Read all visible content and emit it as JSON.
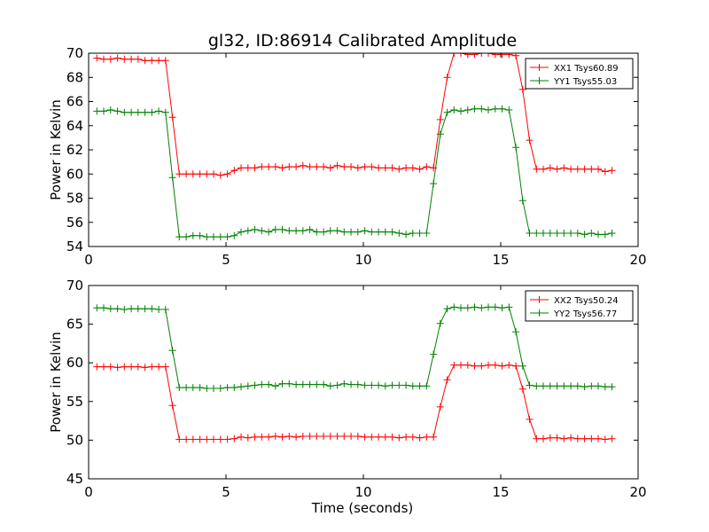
{
  "figure_title": "gl32, ID:86914 Calibrated Amplitude",
  "xlabel": "Time (seconds)",
  "chart_data": [
    {
      "type": "line",
      "ylabel": "Power in Kelvin",
      "xlim": [
        0,
        20
      ],
      "ylim": [
        54,
        70
      ],
      "xticks": [
        0,
        5,
        10,
        15,
        20
      ],
      "yticks": [
        54,
        56,
        58,
        60,
        62,
        64,
        66,
        68,
        70
      ],
      "legend": "top-right",
      "series": [
        {
          "name": "XX1 Tsys60.89",
          "color": "#ff0000",
          "x": [
            0.3,
            0.55,
            0.8,
            1.05,
            1.3,
            1.55,
            1.8,
            2.05,
            2.3,
            2.55,
            2.8,
            3.05,
            3.3,
            3.55,
            3.8,
            4.05,
            4.3,
            4.55,
            4.8,
            5.05,
            5.3,
            5.55,
            5.8,
            6.05,
            6.3,
            6.55,
            6.8,
            7.05,
            7.3,
            7.55,
            7.8,
            8.05,
            8.3,
            8.55,
            8.8,
            9.05,
            9.3,
            9.55,
            9.8,
            10.05,
            10.3,
            10.55,
            10.8,
            11.05,
            11.3,
            11.55,
            11.8,
            12.05,
            12.3,
            12.55,
            12.8,
            13.05,
            13.3,
            13.55,
            13.8,
            14.05,
            14.3,
            14.55,
            14.8,
            15.05,
            15.3,
            15.55,
            15.8,
            16.05,
            16.3,
            16.55,
            16.8,
            17.05,
            17.3,
            17.55,
            17.8,
            18.05,
            18.3,
            18.55,
            18.8,
            19.05
          ],
          "y": [
            69.6,
            69.5,
            69.5,
            69.6,
            69.5,
            69.5,
            69.5,
            69.4,
            69.4,
            69.4,
            69.4,
            64.7,
            60.0,
            60.0,
            60.0,
            60.0,
            60.0,
            60.0,
            59.9,
            60.0,
            60.3,
            60.5,
            60.5,
            60.5,
            60.6,
            60.6,
            60.6,
            60.5,
            60.6,
            60.6,
            60.7,
            60.6,
            60.6,
            60.6,
            60.5,
            60.7,
            60.6,
            60.6,
            60.5,
            60.6,
            60.6,
            60.5,
            60.5,
            60.5,
            60.4,
            60.5,
            60.5,
            60.4,
            60.6,
            60.5,
            64.5,
            68.0,
            70.0,
            70.0,
            69.9,
            69.9,
            70.0,
            70.0,
            69.9,
            69.9,
            69.9,
            69.8,
            67.0,
            62.8,
            60.4,
            60.4,
            60.5,
            60.4,
            60.5,
            60.4,
            60.4,
            60.4,
            60.4,
            60.4,
            60.2,
            60.3
          ]
        },
        {
          "name": "YY1 Tsys55.03",
          "color": "#008000",
          "x": [
            0.3,
            0.55,
            0.8,
            1.05,
            1.3,
            1.55,
            1.8,
            2.05,
            2.3,
            2.55,
            2.8,
            3.05,
            3.3,
            3.55,
            3.8,
            4.05,
            4.3,
            4.55,
            4.8,
            5.05,
            5.3,
            5.55,
            5.8,
            6.05,
            6.3,
            6.55,
            6.8,
            7.05,
            7.3,
            7.55,
            7.8,
            8.05,
            8.3,
            8.55,
            8.8,
            9.05,
            9.3,
            9.55,
            9.8,
            10.05,
            10.3,
            10.55,
            10.8,
            11.05,
            11.3,
            11.55,
            11.8,
            12.05,
            12.3,
            12.55,
            12.8,
            13.05,
            13.3,
            13.55,
            13.8,
            14.05,
            14.3,
            14.55,
            14.8,
            15.05,
            15.3,
            15.55,
            15.8,
            16.05,
            16.3,
            16.55,
            16.8,
            17.05,
            17.3,
            17.55,
            17.8,
            18.05,
            18.3,
            18.55,
            18.8,
            19.05
          ],
          "y": [
            65.2,
            65.2,
            65.3,
            65.2,
            65.1,
            65.1,
            65.1,
            65.1,
            65.1,
            65.2,
            65.1,
            59.7,
            54.8,
            54.8,
            54.9,
            54.9,
            54.8,
            54.8,
            54.8,
            54.8,
            54.9,
            55.2,
            55.3,
            55.4,
            55.3,
            55.2,
            55.4,
            55.4,
            55.3,
            55.3,
            55.3,
            55.4,
            55.2,
            55.2,
            55.3,
            55.3,
            55.2,
            55.2,
            55.2,
            55.3,
            55.2,
            55.2,
            55.2,
            55.2,
            55.1,
            55.0,
            55.1,
            55.1,
            55.1,
            59.2,
            63.3,
            65.1,
            65.3,
            65.2,
            65.3,
            65.4,
            65.4,
            65.3,
            65.4,
            65.4,
            65.3,
            62.2,
            57.8,
            55.1,
            55.1,
            55.1,
            55.1,
            55.1,
            55.1,
            55.1,
            55.1,
            55.0,
            55.1,
            55.0,
            55.0,
            55.1
          ]
        }
      ]
    },
    {
      "type": "line",
      "ylabel": "Power in Kelvin",
      "xlabel": "Time (seconds)",
      "xlim": [
        0,
        20
      ],
      "ylim": [
        45,
        70
      ],
      "xticks": [
        0,
        5,
        10,
        15,
        20
      ],
      "yticks": [
        45,
        50,
        55,
        60,
        65,
        70
      ],
      "legend": "top-right",
      "series": [
        {
          "name": "XX2 Tsys50.24",
          "color": "#ff0000",
          "x": [
            0.3,
            0.55,
            0.8,
            1.05,
            1.3,
            1.55,
            1.8,
            2.05,
            2.3,
            2.55,
            2.8,
            3.05,
            3.3,
            3.55,
            3.8,
            4.05,
            4.3,
            4.55,
            4.8,
            5.05,
            5.3,
            5.55,
            5.8,
            6.05,
            6.3,
            6.55,
            6.8,
            7.05,
            7.3,
            7.55,
            7.8,
            8.05,
            8.3,
            8.55,
            8.8,
            9.05,
            9.3,
            9.55,
            9.8,
            10.05,
            10.3,
            10.55,
            10.8,
            11.05,
            11.3,
            11.55,
            11.8,
            12.05,
            12.3,
            12.55,
            12.8,
            13.05,
            13.3,
            13.55,
            13.8,
            14.05,
            14.3,
            14.55,
            14.8,
            15.05,
            15.3,
            15.55,
            15.8,
            16.05,
            16.3,
            16.55,
            16.8,
            17.05,
            17.3,
            17.55,
            17.8,
            18.05,
            18.3,
            18.55,
            18.8,
            19.05
          ],
          "y": [
            59.5,
            59.5,
            59.5,
            59.4,
            59.5,
            59.5,
            59.5,
            59.4,
            59.5,
            59.5,
            59.5,
            54.5,
            50.1,
            50.1,
            50.1,
            50.1,
            50.1,
            50.1,
            50.1,
            50.1,
            50.2,
            50.4,
            50.3,
            50.4,
            50.4,
            50.4,
            50.5,
            50.4,
            50.5,
            50.4,
            50.5,
            50.5,
            50.5,
            50.5,
            50.5,
            50.5,
            50.5,
            50.5,
            50.5,
            50.4,
            50.4,
            50.4,
            50.4,
            50.4,
            50.3,
            50.4,
            50.4,
            50.3,
            50.4,
            50.4,
            54.3,
            57.8,
            59.7,
            59.7,
            59.7,
            59.6,
            59.6,
            59.7,
            59.7,
            59.6,
            59.7,
            59.6,
            56.6,
            52.7,
            50.2,
            50.2,
            50.3,
            50.3,
            50.2,
            50.3,
            50.2,
            50.2,
            50.2,
            50.2,
            50.1,
            50.2
          ]
        },
        {
          "name": "YY2 Tsys56.77",
          "color": "#008000",
          "x": [
            0.3,
            0.55,
            0.8,
            1.05,
            1.3,
            1.55,
            1.8,
            2.05,
            2.3,
            2.55,
            2.8,
            3.05,
            3.3,
            3.55,
            3.8,
            4.05,
            4.3,
            4.55,
            4.8,
            5.05,
            5.3,
            5.55,
            5.8,
            6.05,
            6.3,
            6.55,
            6.8,
            7.05,
            7.3,
            7.55,
            7.8,
            8.05,
            8.3,
            8.55,
            8.8,
            9.05,
            9.3,
            9.55,
            9.8,
            10.05,
            10.3,
            10.55,
            10.8,
            11.05,
            11.3,
            11.55,
            11.8,
            12.05,
            12.3,
            12.55,
            12.8,
            13.05,
            13.3,
            13.55,
            13.8,
            14.05,
            14.3,
            14.55,
            14.8,
            15.05,
            15.3,
            15.55,
            15.8,
            16.05,
            16.3,
            16.55,
            16.8,
            17.05,
            17.3,
            17.55,
            17.8,
            18.05,
            18.3,
            18.55,
            18.8,
            19.05
          ],
          "y": [
            67.1,
            67.1,
            67.0,
            67.0,
            66.9,
            67.0,
            67.0,
            67.0,
            67.0,
            66.9,
            66.9,
            61.6,
            56.8,
            56.8,
            56.8,
            56.8,
            56.7,
            56.7,
            56.7,
            56.8,
            56.8,
            56.9,
            57.0,
            57.1,
            57.2,
            57.2,
            57.0,
            57.3,
            57.3,
            57.2,
            57.2,
            57.2,
            57.2,
            57.2,
            57.0,
            57.1,
            57.3,
            57.2,
            57.2,
            57.1,
            57.1,
            57.1,
            57.0,
            57.1,
            57.1,
            57.1,
            57.0,
            57.0,
            57.0,
            61.1,
            65.1,
            67.0,
            67.2,
            67.1,
            67.1,
            67.2,
            67.1,
            67.2,
            67.2,
            67.1,
            67.2,
            64.0,
            59.6,
            57.1,
            57.0,
            57.0,
            57.0,
            57.0,
            57.0,
            57.0,
            57.0,
            56.9,
            57.0,
            57.0,
            56.9,
            56.9
          ]
        }
      ]
    }
  ]
}
